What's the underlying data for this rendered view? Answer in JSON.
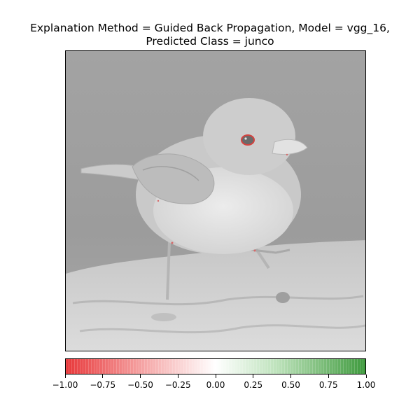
{
  "title": {
    "line1": "Explanation Method = Guided Back Propagation, Model = vgg_16,",
    "line2": "Predicted Class = junco"
  },
  "image": {
    "subject": "junco bird perched on a rock (grayscale with attribution overlay)"
  },
  "colorbar": {
    "ticks": [
      "−1.00",
      "−0.75",
      "−0.50",
      "−0.25",
      "0.00",
      "0.25",
      "0.50",
      "0.75",
      "1.00"
    ],
    "range": [
      -1.0,
      1.0
    ],
    "colors": {
      "negative": "#e8383a",
      "neutral": "#ffffff",
      "positive": "#3e9a3d"
    }
  }
}
